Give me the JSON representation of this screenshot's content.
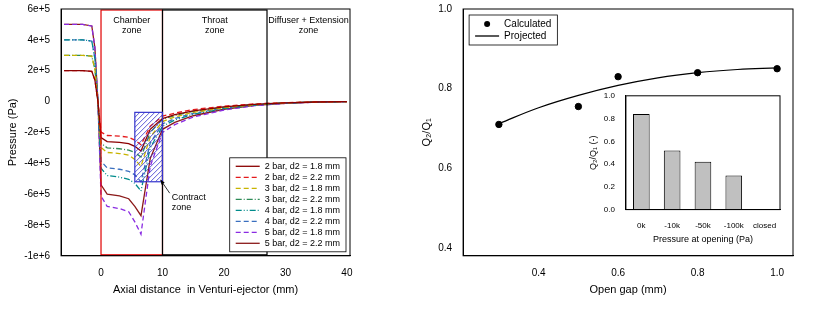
{
  "chart_data": [
    {
      "type": "line",
      "x_label": "Axial distance  in Venturi-ejector (mm)",
      "y_label": "Pressure (Pa)",
      "x": [
        -6,
        -3,
        -1.5,
        -1,
        -0.5,
        0,
        1,
        3,
        4.5,
        5.5,
        6.5,
        8,
        10,
        12,
        15,
        20,
        25,
        30,
        35,
        40
      ],
      "series": [
        {
          "name": "2 bar, d2 = 1.8 mm",
          "color": "#8b0000",
          "line_style": "solid",
          "values": [
            200000,
            200000,
            196000,
            140000,
            0,
            -234000,
            -260000,
            -265000,
            -273000,
            -290000,
            -320000,
            -180000,
            -110000,
            -85000,
            -60000,
            -35000,
            -18000,
            -8000,
            -3000,
            0
          ]
        },
        {
          "name": "2 bar, d2 = 2.2 mm",
          "color": "#e41a1c",
          "line_style": "dashed",
          "values": [
            200000,
            200000,
            196000,
            140000,
            0,
            -198000,
            -220000,
            -224000,
            -231000,
            -250000,
            -280000,
            -160000,
            -95000,
            -75000,
            -52000,
            -30000,
            -15000,
            -7000,
            -2000,
            0
          ]
        },
        {
          "name": "3 bar, d2 = 1.8 mm",
          "color": "#c8b400",
          "line_style": "dashed",
          "values": [
            300000,
            300000,
            294000,
            210000,
            0,
            -297000,
            -330000,
            -337000,
            -347000,
            -375000,
            -420000,
            -230000,
            -130000,
            -100000,
            -70000,
            -40000,
            -20000,
            -9000,
            -3000,
            0
          ]
        },
        {
          "name": "3 bar, d2 = 2.2 mm",
          "color": "#2e8b57",
          "line_style": "dashdot",
          "values": [
            300000,
            300000,
            294000,
            210000,
            0,
            -270000,
            -300000,
            -306000,
            -315000,
            -330000,
            -360000,
            -200000,
            -115000,
            -90000,
            -63000,
            -36000,
            -18000,
            -8000,
            -3000,
            0
          ]
        },
        {
          "name": "4 bar, d2 = 1.8 mm",
          "color": "#008b8b",
          "line_style": "dashdotdot",
          "values": [
            400000,
            400000,
            392000,
            280000,
            0,
            -432000,
            -480000,
            -490000,
            -504000,
            -530000,
            -580000,
            -300000,
            -160000,
            -120000,
            -82000,
            -46000,
            -23000,
            -10000,
            -3000,
            0
          ]
        },
        {
          "name": "4 bar, d2 = 2.2 mm",
          "color": "#3a6fbf",
          "line_style": "dashed",
          "values": [
            400000,
            400000,
            392000,
            280000,
            0,
            -387000,
            -430000,
            -439000,
            -452000,
            -475000,
            -520000,
            -270000,
            -145000,
            -110000,
            -76000,
            -42000,
            -21000,
            -9000,
            -3000,
            0
          ]
        },
        {
          "name": "5 bar, d2 = 1.8 mm",
          "color": "#8a2be2",
          "line_style": "dashed",
          "values": [
            500000,
            500000,
            490000,
            350000,
            0,
            -612000,
            -680000,
            -694000,
            -714000,
            -780000,
            -860000,
            -420000,
            -200000,
            -150000,
            -100000,
            -55000,
            -27000,
            -12000,
            -4000,
            0
          ]
        },
        {
          "name": "5 bar, d2 = 2.2 mm",
          "color": "#8b1a1a",
          "line_style": "solid",
          "values": [
            500000,
            500000,
            490000,
            350000,
            0,
            -540000,
            -600000,
            -612000,
            -630000,
            -680000,
            -740000,
            -370000,
            -180000,
            -135000,
            -92000,
            -50000,
            -25000,
            -11000,
            -4000,
            0
          ]
        }
      ],
      "xlim": [
        -6.5,
        40.5
      ],
      "xticks": [
        0,
        10,
        20,
        30,
        40
      ],
      "ylim": [
        -1000000,
        600000
      ],
      "yticks": [
        {
          "value": 600000,
          "label": "6e+5"
        },
        {
          "value": 400000,
          "label": "4e+5"
        },
        {
          "value": 200000,
          "label": "2e+5"
        },
        0,
        {
          "value": -200000,
          "label": "-2e+5"
        },
        {
          "value": -400000,
          "label": "-4e+5"
        },
        {
          "value": -600000,
          "label": "-6e+5"
        },
        {
          "value": -800000,
          "label": "-8e+5"
        },
        {
          "value": -1000000,
          "label": "-1e+6"
        }
      ],
      "grid": false,
      "legend": "lower right",
      "zones": [
        {
          "label": "Chamber\nzone",
          "x": [
            0,
            10
          ],
          "color": "#e00000"
        },
        {
          "label": "Throat\nzone",
          "x": [
            10,
            27
          ],
          "color": "#000000"
        },
        {
          "label": "Diffuser + Extension\nzone",
          "x": [
            27,
            40.5
          ]
        }
      ],
      "annotations": [
        {
          "text": "Contract\nzone",
          "x": 11.5,
          "y": -620000,
          "box": {
            "x": [
              5.5,
              10
            ],
            "y": [
              -520000,
              -70000
            ]
          },
          "color": "#3333cc"
        }
      ]
    },
    {
      "type": "scatter",
      "x_label": "Open gap (mm)",
      "y_label": "Q₂/Q₁",
      "series": [
        {
          "name": "Calculated",
          "type": "scatter",
          "marker": "circle",
          "color": "#000000",
          "x": [
            0.3,
            0.5,
            0.6,
            0.8,
            1.0
          ],
          "values": [
            0.71,
            0.755,
            0.83,
            0.84,
            0.85
          ]
        },
        {
          "name": "Projected",
          "type": "line",
          "line_style": "solid",
          "color": "#000000",
          "x": [
            0.3,
            0.4,
            0.5,
            0.6,
            0.7,
            0.8,
            0.9,
            1.0
          ],
          "values": [
            0.712,
            0.752,
            0.783,
            0.808,
            0.827,
            0.84,
            0.848,
            0.852
          ]
        }
      ],
      "xlim": [
        0.21,
        1.04
      ],
      "xticks": [
        0.4,
        0.6,
        0.8,
        {
          "value": 1,
          "label": "1.0"
        }
      ],
      "ylim": [
        0.38,
        1
      ],
      "yticks": [
        0.4,
        0.6,
        0.8,
        {
          "value": 1,
          "label": "1.0"
        }
      ],
      "grid": false,
      "legend": "upper left"
    },
    {
      "type": "bar",
      "x_label": "Pressure at opening (Pa)",
      "y_label": "Q₂/Q₁ (-)",
      "categories": [
        "0k",
        "-10k",
        "-50k",
        "-100k",
        "closed"
      ],
      "values": [
        0.84,
        0.52,
        0.42,
        0.3,
        0
      ],
      "color": "#c0c0c0",
      "ylim": [
        0,
        1
      ],
      "yticks": [
        {
          "value": 0,
          "label": "0.0"
        },
        0.2,
        0.4,
        0.6,
        0.8,
        {
          "value": 1,
          "label": "1.0"
        }
      ],
      "grid": false
    }
  ]
}
